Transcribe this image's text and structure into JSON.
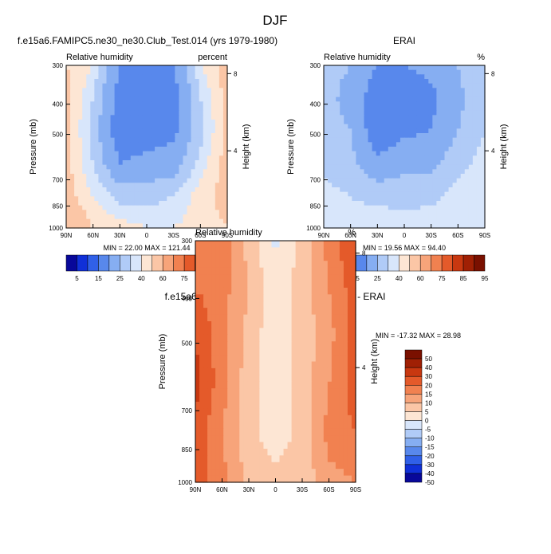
{
  "figure": {
    "title": "DJF"
  },
  "chart_data": [
    {
      "type": "heatmap",
      "title": "f.e15a6.FAMIPC5.ne30_ne30.Club_Test.014 (yrs 1979-1980)",
      "left_label": "Relative humidity",
      "right_label": "percent",
      "xlabel": "",
      "ylabel": "Pressure (mb)",
      "y2label": "Height (km)",
      "x_ticks": [
        "90N",
        "60N",
        "30N",
        "0",
        "30S",
        "60S",
        "90S"
      ],
      "y_ticks": [
        "300",
        "400",
        "500",
        "700",
        "850",
        "1000"
      ],
      "y2_ticks": [
        "8",
        "4"
      ],
      "stats": "MIN = 22.00  MAX = 121.44",
      "colorbar": {
        "levels": [
          "5",
          "15",
          "25",
          "40",
          "60",
          "75",
          "85",
          "95"
        ],
        "colors": [
          "#08089a",
          "#1030d8",
          "#3060e8",
          "#5888ec",
          "#86aef2",
          "#b0cbf7",
          "#d8e6fb",
          "#fde6d4",
          "#fbc6a6",
          "#f7a47a",
          "#f18150",
          "#e45a2a",
          "#c83810",
          "#a02004",
          "#7a1000"
        ]
      },
      "x": [
        90,
        60,
        30,
        0,
        -30,
        -60,
        -90
      ],
      "y": [
        300,
        400,
        500,
        700,
        850,
        1000
      ],
      "z": [
        [
          95,
          85,
          40,
          25,
          40,
          85,
          100
        ],
        [
          100,
          75,
          30,
          25,
          30,
          75,
          100
        ],
        [
          100,
          70,
          25,
          30,
          35,
          70,
          100
        ],
        [
          100,
          75,
          40,
          45,
          50,
          80,
          100
        ],
        [
          100,
          85,
          70,
          70,
          75,
          90,
          100
        ],
        [
          110,
          95,
          90,
          85,
          85,
          90,
          95
        ]
      ]
    },
    {
      "type": "heatmap",
      "title": "ERAI",
      "left_label": "Relative humidity",
      "right_label": "%",
      "xlabel": "",
      "ylabel": "Pressure (mb)",
      "y2label": "Height (km)",
      "x_ticks": [
        "90N",
        "60N",
        "30N",
        "0",
        "30S",
        "60S",
        "90S"
      ],
      "y_ticks": [
        "300",
        "400",
        "500",
        "700",
        "850",
        "1000"
      ],
      "y2_ticks": [
        "8",
        "4"
      ],
      "stats": "MIN = 19.56  MAX = 94.40",
      "colorbar": {
        "levels": [
          "5",
          "15",
          "25",
          "40",
          "60",
          "75",
          "85",
          "95"
        ],
        "colors": [
          "#08089a",
          "#1030d8",
          "#3060e8",
          "#5888ec",
          "#86aef2",
          "#b0cbf7",
          "#d8e6fb",
          "#fde6d4",
          "#fbc6a6",
          "#f7a47a",
          "#f18150",
          "#e45a2a",
          "#c83810",
          "#a02004",
          "#7a1000"
        ]
      },
      "x": [
        90,
        60,
        30,
        0,
        -30,
        -60,
        -90
      ],
      "y": [
        300,
        400,
        500,
        700,
        850,
        1000
      ],
      "z": [
        [
          65,
          60,
          40,
          40,
          45,
          60,
          75
        ],
        [
          65,
          55,
          25,
          30,
          35,
          55,
          75
        ],
        [
          65,
          60,
          25,
          35,
          40,
          60,
          75
        ],
        [
          70,
          65,
          45,
          55,
          55,
          70,
          80
        ],
        [
          80,
          75,
          70,
          70,
          70,
          80,
          85
        ],
        [
          85,
          80,
          85,
          80,
          85,
          85,
          85
        ]
      ]
    },
    {
      "type": "heatmap",
      "title": "f.e15a6.FAMIPC5.ne30_ne30.Club_Test.014 - ERAI",
      "left_label": "Relative humidity",
      "right_label": "%",
      "xlabel": "",
      "ylabel": "Pressure (mb)",
      "y2label": "Height (km)",
      "x_ticks": [
        "90N",
        "60N",
        "30N",
        "0",
        "30S",
        "60S",
        "90S"
      ],
      "y_ticks": [
        "300",
        "400",
        "500",
        "700",
        "850",
        "1000"
      ],
      "y2_ticks": [
        "8",
        "4"
      ],
      "stats": "MIN = -17.32  MAX =  28.98",
      "colorbar": {
        "levels": [
          "50",
          "40",
          "30",
          "20",
          "15",
          "10",
          "5",
          "0",
          "-5",
          "-10",
          "-15",
          "-20",
          "-30",
          "-40",
          "-50"
        ],
        "colors": [
          "#7a1000",
          "#a02004",
          "#c83810",
          "#e45a2a",
          "#f18150",
          "#f7a47a",
          "#fbc6a6",
          "#fde6d4",
          "#d8e6fb",
          "#b0cbf7",
          "#86aef2",
          "#5888ec",
          "#3060e8",
          "#1030d8",
          "#08089a"
        ]
      },
      "x": [
        90,
        60,
        30,
        0,
        -30,
        -60,
        -90
      ],
      "y": [
        300,
        400,
        500,
        700,
        850,
        1000
      ],
      "z": [
        [
          12,
          15,
          3,
          -6,
          2,
          12,
          20
        ],
        [
          15,
          12,
          5,
          -3,
          2,
          10,
          18
        ],
        [
          20,
          12,
          3,
          -4,
          2,
          8,
          18
        ],
        [
          22,
          12,
          2,
          -4,
          2,
          10,
          18
        ],
        [
          18,
          10,
          2,
          -3,
          2,
          12,
          15
        ],
        [
          18,
          12,
          3,
          2,
          2,
          8,
          10
        ]
      ]
    }
  ]
}
